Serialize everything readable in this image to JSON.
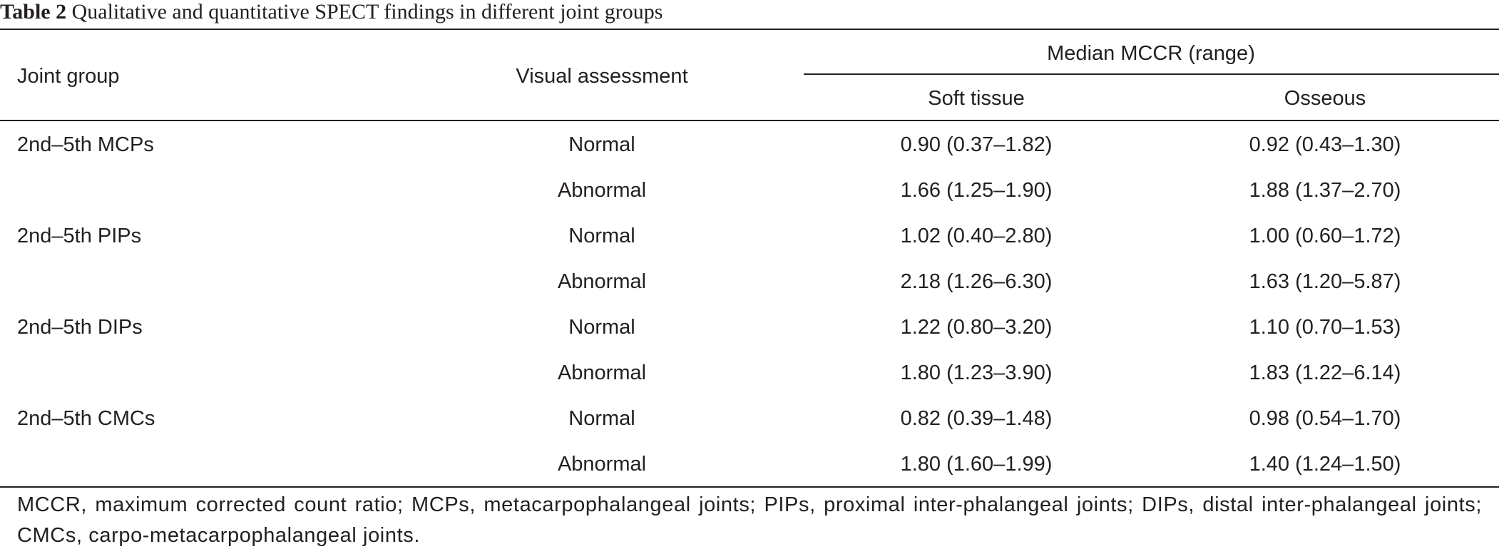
{
  "caption": {
    "label": "Table 2",
    "text": "Qualitative and quantitative SPECT findings in different joint groups"
  },
  "table": {
    "headers": {
      "joint_group": "Joint group",
      "visual_assessment": "Visual assessment",
      "median_mccr": "Median MCCR (range)",
      "soft_tissue": "Soft tissue",
      "osseous": "Osseous"
    },
    "rows": [
      {
        "joint_group": "2nd–5th MCPs",
        "visual": "Normal",
        "soft_tissue": "0.90 (0.37–1.82)",
        "osseous": "0.92 (0.43–1.30)"
      },
      {
        "joint_group": "",
        "visual": "Abnormal",
        "soft_tissue": "1.66 (1.25–1.90)",
        "osseous": "1.88 (1.37–2.70)"
      },
      {
        "joint_group": "2nd–5th PIPs",
        "visual": "Normal",
        "soft_tissue": "1.02 (0.40–2.80)",
        "osseous": "1.00 (0.60–1.72)"
      },
      {
        "joint_group": "",
        "visual": "Abnormal",
        "soft_tissue": "2.18 (1.26–6.30)",
        "osseous": "1.63 (1.20–5.87)"
      },
      {
        "joint_group": "2nd–5th DIPs",
        "visual": "Normal",
        "soft_tissue": "1.22 (0.80–3.20)",
        "osseous": "1.10 (0.70–1.53)"
      },
      {
        "joint_group": "",
        "visual": "Abnormal",
        "soft_tissue": "1.80 (1.23–3.90)",
        "osseous": "1.83 (1.22–6.14)"
      },
      {
        "joint_group": "2nd–5th CMCs",
        "visual": "Normal",
        "soft_tissue": "0.82 (0.39–1.48)",
        "osseous": "0.98 (0.54–1.70)"
      },
      {
        "joint_group": "",
        "visual": "Abnormal",
        "soft_tissue": "1.80 (1.60–1.99)",
        "osseous": "1.40 (1.24–1.50)"
      }
    ],
    "footnote": "MCCR, maximum corrected count ratio; MCPs, metacarpophalangeal joints; PIPs, proximal inter-phalangeal joints; DIPs, distal inter-phalangeal joints; CMCs, carpo-metacarpophalangeal joints."
  }
}
